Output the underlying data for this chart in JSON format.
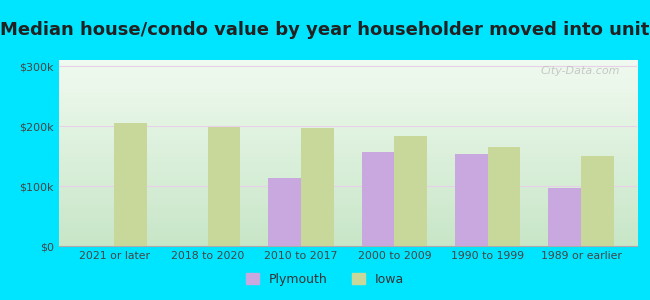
{
  "title": "Median house/condo value by year householder moved into unit",
  "categories": [
    "2021 or later",
    "2018 to 2020",
    "2010 to 2017",
    "2000 to 2009",
    "1990 to 1999",
    "1989 or earlier"
  ],
  "plymouth_values": [
    0,
    0,
    113000,
    157000,
    153000,
    97000
  ],
  "iowa_values": [
    205000,
    198000,
    196000,
    183000,
    165000,
    150000
  ],
  "plymouth_color": "#c9a8e0",
  "iowa_color": "#c8d89a",
  "background_outer": "#00e5ff",
  "ylim": [
    0,
    310000
  ],
  "yticks": [
    0,
    100000,
    200000,
    300000
  ],
  "ytick_labels": [
    "$0",
    "$100k",
    "$200k",
    "$300k"
  ],
  "legend_labels": [
    "Plymouth",
    "Iowa"
  ],
  "watermark": "City-Data.com",
  "title_fontsize": 13,
  "bar_width": 0.35,
  "figure_width": 6.5,
  "figure_height": 3.0
}
